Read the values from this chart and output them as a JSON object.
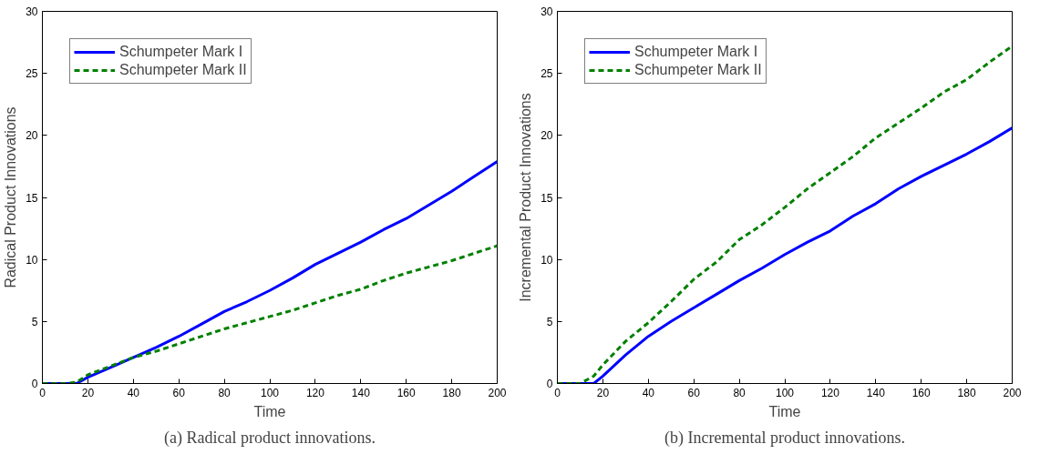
{
  "chart_data": [
    {
      "type": "line",
      "xlabel": "Time",
      "ylabel": "Radical Product Innovations",
      "annotations": [
        "(a) Radical product innovations."
      ],
      "xlim": [
        0,
        200
      ],
      "ylim": [
        0,
        30
      ],
      "xticks": [
        0,
        20,
        40,
        60,
        80,
        100,
        120,
        140,
        160,
        180,
        200
      ],
      "yticks": [
        0,
        5,
        10,
        15,
        20,
        25,
        30
      ],
      "grid": false,
      "legend": "top left",
      "marker": "none",
      "x": [
        0,
        10,
        15,
        20,
        30,
        40,
        50,
        60,
        70,
        80,
        90,
        100,
        110,
        120,
        130,
        140,
        150,
        160,
        170,
        180,
        190,
        200
      ],
      "series": [
        {
          "name": "Schumpeter Mark I",
          "color": "#0000ff",
          "line_style": "solid",
          "values": [
            0,
            0,
            0,
            0.5,
            1.3,
            2.1,
            2.9,
            3.8,
            4.8,
            5.8,
            6.6,
            7.5,
            8.5,
            9.6,
            10.5,
            11.4,
            12.4,
            13.3,
            14.4,
            15.5,
            16.7,
            17.9
          ]
        },
        {
          "name": "Schumpeter Mark II",
          "color": "#008000",
          "line_style": "dashed",
          "values": [
            0,
            0,
            0.1,
            0.7,
            1.4,
            2.1,
            2.6,
            3.2,
            3.8,
            4.4,
            4.9,
            5.4,
            5.9,
            6.5,
            7.1,
            7.6,
            8.3,
            8.9,
            9.4,
            9.9,
            10.5,
            11.1
          ]
        }
      ]
    },
    {
      "type": "line",
      "xlabel": "Time",
      "ylabel": "Incremental Product Innovations",
      "annotations": [
        "(b) Incremental product innovations."
      ],
      "xlim": [
        0,
        200
      ],
      "ylim": [
        0,
        30
      ],
      "xticks": [
        0,
        20,
        40,
        60,
        80,
        100,
        120,
        140,
        160,
        180,
        200
      ],
      "yticks": [
        0,
        5,
        10,
        15,
        20,
        25,
        30
      ],
      "grid": false,
      "legend": "top left",
      "marker": "none",
      "x": [
        0,
        10,
        16,
        20,
        30,
        40,
        50,
        60,
        70,
        80,
        90,
        100,
        110,
        120,
        130,
        140,
        150,
        160,
        170,
        180,
        190,
        200
      ],
      "series": [
        {
          "name": "Schumpeter Mark I",
          "color": "#0000ff",
          "line_style": "solid",
          "values": [
            0,
            0,
            0,
            0.6,
            2.3,
            3.8,
            5.0,
            6.1,
            7.2,
            8.3,
            9.3,
            10.4,
            11.4,
            12.3,
            13.5,
            14.5,
            15.7,
            16.7,
            17.6,
            18.5,
            19.5,
            20.6
          ]
        },
        {
          "name": "Schumpeter Mark II",
          "color": "#008000",
          "line_style": "dashed",
          "values": [
            0,
            0,
            0.6,
            1.5,
            3.4,
            4.9,
            6.6,
            8.4,
            9.8,
            11.6,
            12.8,
            14.2,
            15.7,
            17.0,
            18.3,
            19.8,
            21.0,
            22.2,
            23.5,
            24.5,
            25.9,
            27.2
          ]
        }
      ]
    }
  ]
}
